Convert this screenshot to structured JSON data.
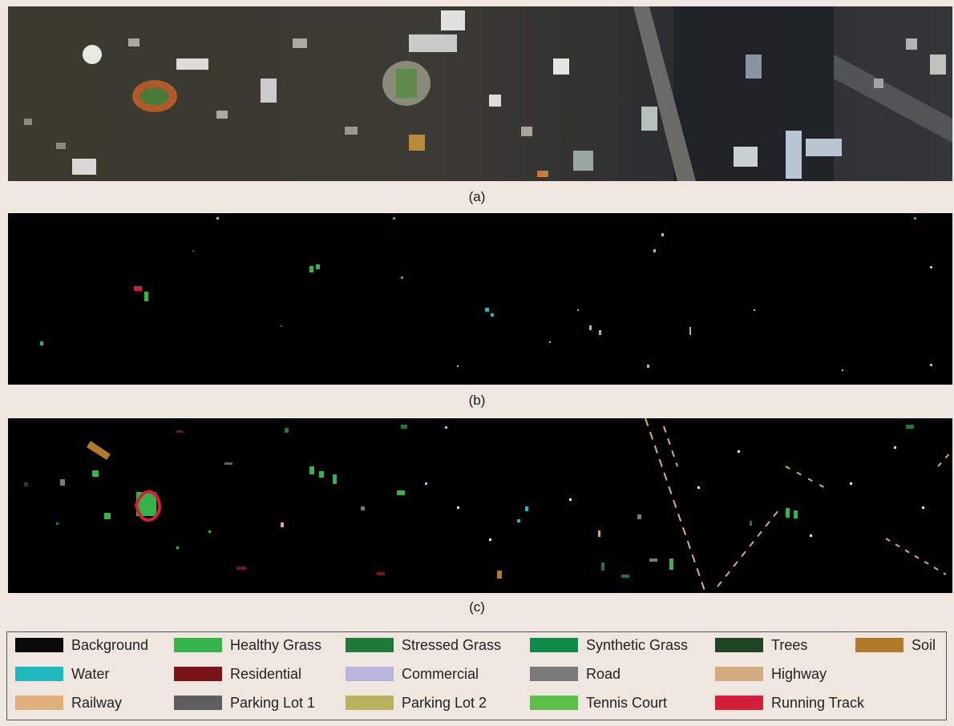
{
  "captions": {
    "a": "(a)",
    "b": "(b)",
    "c": "(c)"
  },
  "panel_a": {
    "description_icon": "aerial-rgb-image"
  },
  "legend": [
    {
      "label": "Background",
      "color": "#0a0a0a"
    },
    {
      "label": "Healthy Grass",
      "color": "#36b34a"
    },
    {
      "label": "Stressed Grass",
      "color": "#1f7a3a"
    },
    {
      "label": "Synthetic Grass",
      "color": "#0f8a4a"
    },
    {
      "label": "Trees",
      "color": "#1f4526"
    },
    {
      "label": "Soil",
      "color": "#b07a28"
    },
    {
      "label": "Water",
      "color": "#1fb8bf"
    },
    {
      "label": "Residential",
      "color": "#7a1418"
    },
    {
      "label": "Commercial",
      "color": "#b8b6dc"
    },
    {
      "label": "Road",
      "color": "#7a7a7a"
    },
    {
      "label": "Highway",
      "color": "#d4aa80"
    },
    {
      "label": "Railway",
      "color": "#e0b07a"
    },
    {
      "label": "Parking Lot 1",
      "color": "#5e5e5e"
    },
    {
      "label": "Parking Lot 2",
      "color": "#b8b25e"
    },
    {
      "label": "Tennis Court",
      "color": "#5cbf4a"
    },
    {
      "label": "Running Track",
      "color": "#d41f3a"
    }
  ]
}
